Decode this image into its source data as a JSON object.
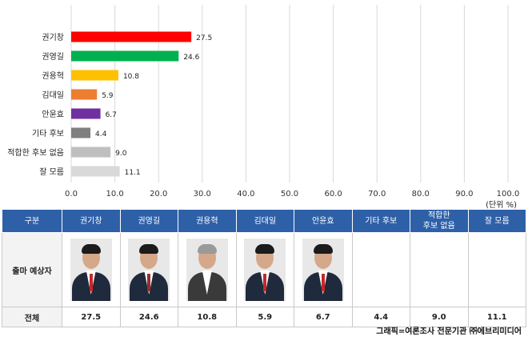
{
  "chart_data": {
    "type": "bar",
    "orientation": "horizontal",
    "categories": [
      "권기창",
      "권영길",
      "권용혁",
      "김대일",
      "안윤효",
      "기타 후보",
      "적합한 후보 없음",
      "잘 모름"
    ],
    "values": [
      27.5,
      24.6,
      10.8,
      5.9,
      6.7,
      4.4,
      9.0,
      11.1
    ],
    "value_labels": [
      "27.5",
      "24.6",
      "10.8",
      "5.9",
      "6.7",
      "4.4",
      "9.0",
      "11.1"
    ],
    "colors": [
      "#ff0000",
      "#00b050",
      "#ffc000",
      "#ed7d31",
      "#7030a0",
      "#7f7f7f",
      "#bfbfbf",
      "#d9d9d9"
    ],
    "xlim": [
      0,
      100
    ],
    "xticks": [
      "0.0",
      "10.0",
      "20.0",
      "30.0",
      "40.0",
      "50.0",
      "60.0",
      "70.0",
      "80.0",
      "90.0",
      "100.0"
    ],
    "grid": true,
    "legend": "none"
  },
  "unit_label": "(단위 %)",
  "table": {
    "header": [
      "구분",
      "권기창",
      "권영길",
      "권용혁",
      "김대일",
      "안윤효",
      "기타 후보",
      "적합한\n후보 없음",
      "잘 모름"
    ],
    "photo_row_label": "출마 예상자",
    "photo_icons": [
      "candidate-portrait",
      "candidate-portrait",
      "candidate-portrait",
      "candidate-portrait",
      "candidate-portrait"
    ],
    "total_row_label": "전체",
    "total_values": [
      "27.5",
      "24.6",
      "10.8",
      "5.9",
      "6.7",
      "4.4",
      "9.0",
      "11.1"
    ]
  },
  "source": "그래픽=여론조사 전문기관 ㈜에브리미디어"
}
